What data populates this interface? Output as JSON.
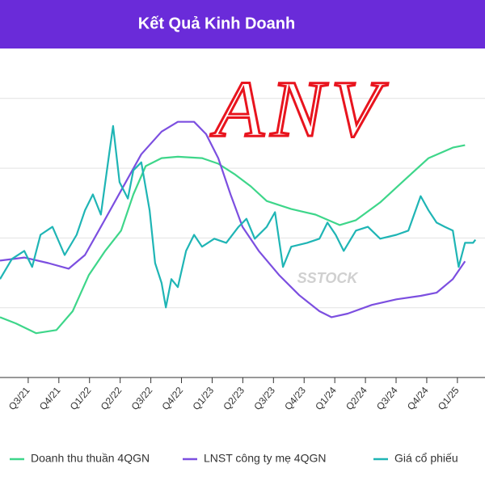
{
  "chart_data": {
    "type": "line",
    "title": "Kết Quả Kinh Doanh",
    "annotations": [
      "ANV",
      "SSTOCK"
    ],
    "xlim": [
      -0.92,
      14.9
    ],
    "xticks": [
      {
        "value": 0,
        "label": "Q3/21"
      },
      {
        "value": 1,
        "label": "Q4/21"
      },
      {
        "value": 2,
        "label": "Q1/22"
      },
      {
        "value": 3,
        "label": "Q2/22"
      },
      {
        "value": 4,
        "label": "Q3/22"
      },
      {
        "value": 5,
        "label": "Q4/22"
      },
      {
        "value": 6,
        "label": "Q1/23"
      },
      {
        "value": 7,
        "label": "Q2/23"
      },
      {
        "value": 8,
        "label": "Q3/23"
      },
      {
        "value": 9,
        "label": "Q4/23"
      },
      {
        "value": 10,
        "label": "Q1/24"
      },
      {
        "value": 11,
        "label": "Q2/24"
      },
      {
        "value": 12,
        "label": "Q3/24"
      },
      {
        "value": 13,
        "label": "Q4/24"
      },
      {
        "value": 14,
        "label": "Q1/25"
      }
    ],
    "ylim": [
      0,
      100
    ],
    "yticks": [
      20,
      40,
      60,
      80
    ],
    "grid": true,
    "series": [
      {
        "name": "Doanh thu thuần 4QGN",
        "color": "#3ed68a",
        "x": [
          -0.92,
          -0.4,
          0.26,
          0.92,
          1.45,
          1.98,
          2.51,
          3.03,
          3.43,
          3.83,
          4.35,
          4.88,
          5.67,
          6.2,
          6.73,
          7.26,
          7.78,
          8.58,
          9.37,
          10.16,
          10.69,
          11.48,
          12.27,
          13.06,
          13.85,
          14.25
        ],
        "values": [
          17.3,
          15.5,
          12.7,
          13.6,
          19.0,
          29.4,
          36.3,
          42.1,
          52.5,
          60.6,
          62.9,
          63.3,
          62.9,
          61.3,
          58.3,
          54.8,
          50.6,
          48.3,
          46.7,
          43.7,
          45.1,
          50.2,
          56.6,
          62.9,
          65.9,
          66.6
        ]
      },
      {
        "name": "LNST công ty mẹ 4QGN",
        "color": "#7c4fe0",
        "x": [
          -0.92,
          -0.13,
          0.66,
          1.32,
          1.85,
          2.37,
          3.03,
          3.69,
          4.35,
          4.88,
          5.41,
          5.8,
          6.2,
          6.6,
          6.99,
          7.52,
          8.18,
          8.84,
          9.5,
          9.89,
          10.42,
          11.21,
          12.01,
          12.8,
          13.32,
          13.85,
          14.25
        ],
        "values": [
          33.5,
          34.4,
          32.8,
          31.2,
          35.1,
          43.2,
          53.6,
          64.0,
          70.5,
          73.3,
          73.3,
          69.8,
          62.9,
          52.5,
          43.2,
          36.3,
          29.4,
          23.6,
          19.0,
          17.3,
          18.3,
          20.8,
          22.4,
          23.4,
          24.3,
          28.2,
          33.3
        ]
      },
      {
        "name": "Giá cổ phiếu",
        "color": "#1fb5b5",
        "x": [
          -0.92,
          -0.53,
          -0.13,
          0.13,
          0.4,
          0.79,
          1.19,
          1.58,
          1.85,
          2.11,
          2.37,
          2.64,
          2.77,
          2.98,
          3.25,
          3.43,
          3.69,
          3.96,
          4.14,
          4.35,
          4.49,
          4.67,
          4.88,
          5.15,
          5.41,
          5.67,
          6.07,
          6.46,
          6.86,
          7.12,
          7.39,
          7.78,
          8.05,
          8.31,
          8.58,
          9.1,
          9.5,
          9.76,
          10.03,
          10.29,
          10.69,
          11.08,
          11.48,
          12.01,
          12.4,
          12.8,
          13.06,
          13.32,
          13.59,
          13.85,
          14.04,
          14.25,
          14.51,
          14.59
        ],
        "values": [
          28.2,
          34.0,
          36.3,
          31.7,
          40.9,
          43.2,
          35.1,
          40.9,
          47.9,
          52.5,
          46.7,
          64.0,
          72.1,
          56.0,
          51.3,
          59.4,
          61.7,
          47.9,
          32.8,
          27.1,
          20.1,
          28.2,
          25.9,
          36.3,
          40.9,
          37.5,
          39.8,
          38.6,
          43.2,
          45.5,
          39.8,
          43.2,
          47.4,
          31.7,
          37.5,
          38.6,
          39.8,
          44.4,
          40.9,
          36.3,
          42.1,
          43.2,
          39.8,
          40.9,
          42.1,
          52.0,
          47.9,
          44.4,
          43.2,
          42.1,
          31.7,
          38.6,
          38.6,
          39.5
        ]
      }
    ]
  }
}
